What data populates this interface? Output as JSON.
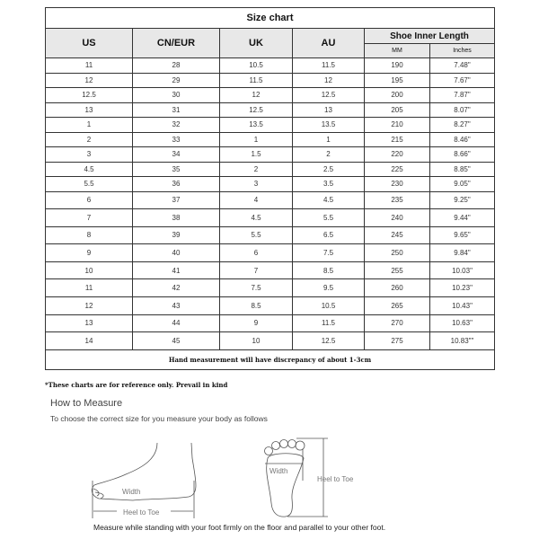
{
  "title": "Size chart",
  "columns": {
    "us": "US",
    "cn_eur": "CN/EUR",
    "uk": "UK",
    "au": "AU",
    "length_group": "Shoe Inner Length",
    "mm": "MM",
    "inches": "Inches"
  },
  "rows": [
    [
      "11",
      "28",
      "10.5",
      "11.5",
      "190",
      "7.48\""
    ],
    [
      "12",
      "29",
      "11.5",
      "12",
      "195",
      "7.67\""
    ],
    [
      "12.5",
      "30",
      "12",
      "12.5",
      "200",
      "7.87\""
    ],
    [
      "13",
      "31",
      "12.5",
      "13",
      "205",
      "8.07\""
    ],
    [
      "1",
      "32",
      "13.5",
      "13.5",
      "210",
      "8.27\""
    ],
    [
      "2",
      "33",
      "1",
      "1",
      "215",
      "8.46\""
    ],
    [
      "3",
      "34",
      "1.5",
      "2",
      "220",
      "8.66\""
    ],
    [
      "4.5",
      "35",
      "2",
      "2.5",
      "225",
      "8.85\""
    ],
    [
      "5.5",
      "36",
      "3",
      "3.5",
      "230",
      "9.05\""
    ],
    [
      "6",
      "37",
      "4",
      "4.5",
      "235",
      "9.25\""
    ],
    [
      "7",
      "38",
      "4.5",
      "5.5",
      "240",
      "9.44\""
    ],
    [
      "8",
      "39",
      "5.5",
      "6.5",
      "245",
      "9.65\""
    ],
    [
      "9",
      "40",
      "6",
      "7.5",
      "250",
      "9.84\""
    ],
    [
      "10",
      "41",
      "7",
      "8.5",
      "255",
      "10.03\""
    ],
    [
      "11",
      "42",
      "7.5",
      "9.5",
      "260",
      "10.23\""
    ],
    [
      "12",
      "43",
      "8.5",
      "10.5",
      "265",
      "10.43\""
    ],
    [
      "13",
      "44",
      "9",
      "11.5",
      "270",
      "10.63\""
    ],
    [
      "14",
      "45",
      "10",
      "12.5",
      "275",
      "10.83\"\""
    ]
  ],
  "footer": "Hand measurement will have discrepancy of about 1-3cm",
  "note": "*These charts are for reference only. Prevail in kind",
  "measure": {
    "heading": "How to Measure",
    "subheading": "To choose the correct size for you measure your body as follows",
    "side_width_label": "Width",
    "side_length_label": "Heel to Toe",
    "sole_width_label": "Width",
    "sole_length_label": "Heel to Toe",
    "caption": "Measure while standing with your foot firmly on the floor and parallel to your other foot."
  }
}
